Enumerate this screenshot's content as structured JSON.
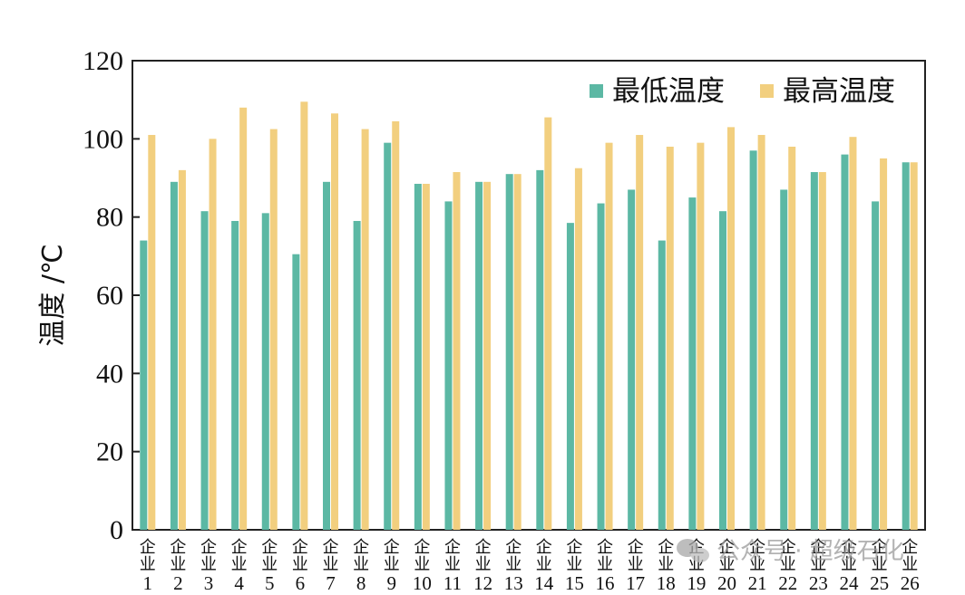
{
  "chart_data": {
    "type": "bar",
    "title": "",
    "xlabel": "",
    "ylabel": "温度 /℃",
    "ylim": [
      0,
      120
    ],
    "yticks": [
      "0",
      "20",
      "40",
      "60",
      "80",
      "100",
      "120"
    ],
    "grid": false,
    "legend_position": "top-right",
    "categories": [
      "企业1",
      "企业2",
      "企业3",
      "企业4",
      "企业5",
      "企业6",
      "企业7",
      "企业8",
      "企业9",
      "企业10",
      "企业11",
      "企业12",
      "企业13",
      "企业14",
      "企业15",
      "企业16",
      "企业17",
      "企业18",
      "企业19",
      "企业20",
      "企业21",
      "企业22",
      "企业23",
      "企业24",
      "企业25",
      "企业26"
    ],
    "category_prefix": "企业",
    "category_numbers": [
      "1",
      "2",
      "3",
      "4",
      "5",
      "6",
      "7",
      "8",
      "9",
      "10",
      "11",
      "12",
      "13",
      "14",
      "15",
      "16",
      "17",
      "18",
      "19",
      "20",
      "21",
      "22",
      "23",
      "24",
      "25",
      "26"
    ],
    "series": [
      {
        "name": "最低温度",
        "color": "#5cb8a4",
        "values": [
          74,
          89,
          81.5,
          79,
          81,
          70.5,
          89,
          79,
          99,
          88.5,
          84,
          89,
          91,
          92,
          78.5,
          83.5,
          87,
          74,
          85,
          81.5,
          97,
          87,
          91.5,
          96,
          84,
          94
        ]
      },
      {
        "name": "最高温度",
        "color": "#f2cf7f",
        "values": [
          101,
          92,
          100,
          108,
          102.5,
          109.5,
          106.5,
          102.5,
          104.5,
          88.5,
          91.5,
          89,
          91,
          105.5,
          92.5,
          99,
          101,
          98,
          99,
          103,
          101,
          98,
          91.5,
          100.5,
          95,
          94
        ]
      }
    ]
  },
  "watermark": {
    "icon": "wechat-icon",
    "text": "公众号 · 超级石化"
  }
}
